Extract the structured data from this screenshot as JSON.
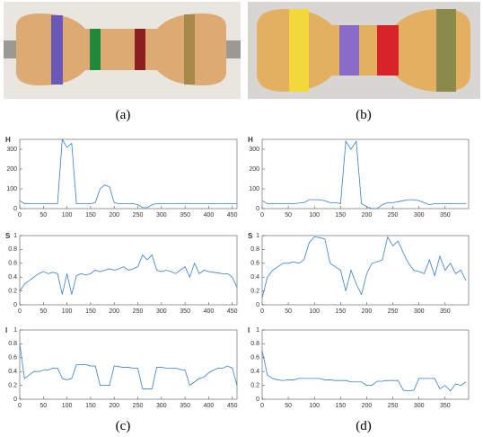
{
  "captions": [
    "(a)",
    "(b)",
    "(c)",
    "(d)"
  ],
  "chart_data": [
    {
      "type": "line",
      "ylabel": "H",
      "color": "#3a7fc4",
      "xlim": [
        0,
        460
      ],
      "ylim": [
        0,
        350
      ],
      "xticks": [
        0,
        50,
        100,
        150,
        200,
        250,
        300,
        350,
        400,
        450
      ],
      "yticks": [
        0,
        100,
        200,
        300
      ],
      "x": [
        0,
        10,
        20,
        30,
        40,
        50,
        60,
        70,
        80,
        90,
        100,
        110,
        120,
        130,
        140,
        150,
        160,
        170,
        180,
        190,
        200,
        210,
        220,
        230,
        240,
        250,
        260,
        270,
        280,
        290,
        300,
        310,
        320,
        330,
        340,
        350,
        360,
        370,
        380,
        390,
        400,
        410,
        420,
        430,
        440,
        450,
        460
      ],
      "values": [
        40,
        25,
        25,
        25,
        25,
        25,
        25,
        25,
        25,
        350,
        310,
        330,
        25,
        25,
        25,
        25,
        30,
        100,
        120,
        110,
        30,
        25,
        25,
        25,
        25,
        20,
        5,
        5,
        20,
        25,
        25,
        25,
        25,
        25,
        25,
        25,
        25,
        25,
        25,
        25,
        25,
        25,
        25,
        25,
        25,
        25,
        25
      ]
    },
    {
      "type": "line",
      "ylabel": "S",
      "color": "#3a7fc4",
      "xlim": [
        0,
        460
      ],
      "ylim": [
        0,
        1
      ],
      "xticks": [
        0,
        50,
        100,
        150,
        200,
        250,
        300,
        350,
        400,
        450
      ],
      "yticks": [
        0,
        0.2,
        0.4,
        0.6,
        0.8,
        1
      ],
      "x": [
        0,
        10,
        20,
        30,
        40,
        50,
        60,
        70,
        80,
        90,
        100,
        110,
        120,
        130,
        140,
        150,
        160,
        170,
        180,
        190,
        200,
        210,
        220,
        230,
        240,
        250,
        260,
        270,
        280,
        290,
        300,
        310,
        320,
        330,
        340,
        350,
        360,
        370,
        380,
        390,
        400,
        410,
        420,
        430,
        440,
        450,
        460
      ],
      "values": [
        0.2,
        0.3,
        0.35,
        0.4,
        0.45,
        0.48,
        0.45,
        0.47,
        0.45,
        0.15,
        0.45,
        0.15,
        0.42,
        0.45,
        0.43,
        0.45,
        0.5,
        0.48,
        0.5,
        0.52,
        0.5,
        0.52,
        0.55,
        0.5,
        0.52,
        0.55,
        0.72,
        0.65,
        0.72,
        0.5,
        0.48,
        0.5,
        0.48,
        0.45,
        0.5,
        0.55,
        0.4,
        0.6,
        0.45,
        0.5,
        0.48,
        0.47,
        0.46,
        0.45,
        0.45,
        0.4,
        0.25
      ]
    },
    {
      "type": "line",
      "ylabel": "I",
      "color": "#3a7fc4",
      "xlim": [
        0,
        460
      ],
      "ylim": [
        0,
        1
      ],
      "xticks": [
        0,
        50,
        100,
        150,
        200,
        250,
        300,
        350,
        400,
        450
      ],
      "yticks": [
        0,
        0.2,
        0.4,
        0.6,
        0.8,
        1
      ],
      "x": [
        0,
        10,
        20,
        30,
        40,
        50,
        60,
        70,
        80,
        90,
        100,
        110,
        120,
        130,
        140,
        150,
        160,
        170,
        180,
        190,
        200,
        210,
        220,
        230,
        240,
        250,
        260,
        270,
        280,
        290,
        300,
        310,
        320,
        330,
        340,
        350,
        360,
        370,
        380,
        390,
        400,
        410,
        420,
        430,
        440,
        450,
        460
      ],
      "values": [
        0.8,
        0.3,
        0.35,
        0.4,
        0.4,
        0.42,
        0.42,
        0.45,
        0.45,
        0.3,
        0.28,
        0.3,
        0.5,
        0.5,
        0.5,
        0.48,
        0.48,
        0.2,
        0.2,
        0.2,
        0.48,
        0.47,
        0.46,
        0.46,
        0.45,
        0.45,
        0.15,
        0.15,
        0.15,
        0.46,
        0.46,
        0.45,
        0.45,
        0.45,
        0.43,
        0.42,
        0.2,
        0.25,
        0.3,
        0.32,
        0.38,
        0.42,
        0.45,
        0.45,
        0.48,
        0.45,
        0.2
      ]
    },
    {
      "type": "line",
      "ylabel": "H",
      "color": "#3a7fc4",
      "xlim": [
        0,
        395
      ],
      "ylim": [
        0,
        350
      ],
      "xticks": [
        0,
        50,
        100,
        150,
        200,
        250,
        300,
        350
      ],
      "yticks": [
        0,
        100,
        200,
        300
      ],
      "x": [
        0,
        10,
        20,
        30,
        40,
        50,
        60,
        70,
        80,
        90,
        100,
        110,
        120,
        130,
        140,
        150,
        160,
        170,
        180,
        190,
        200,
        210,
        220,
        230,
        240,
        250,
        260,
        270,
        280,
        290,
        300,
        310,
        320,
        330,
        340,
        350,
        360,
        370,
        380,
        390
      ],
      "values": [
        40,
        25,
        25,
        25,
        25,
        25,
        25,
        28,
        30,
        45,
        45,
        45,
        40,
        30,
        30,
        25,
        340,
        300,
        340,
        25,
        10,
        0,
        0,
        20,
        30,
        30,
        35,
        40,
        45,
        45,
        40,
        30,
        20,
        25,
        25,
        25,
        25,
        25,
        25,
        25
      ]
    },
    {
      "type": "line",
      "ylabel": "S",
      "color": "#3a7fc4",
      "xlim": [
        0,
        395
      ],
      "ylim": [
        0,
        1
      ],
      "xticks": [
        0,
        50,
        100,
        150,
        200,
        250,
        300,
        350
      ],
      "yticks": [
        0,
        0.2,
        0.4,
        0.6,
        0.8,
        1
      ],
      "x": [
        0,
        10,
        20,
        30,
        40,
        50,
        60,
        70,
        80,
        90,
        100,
        110,
        120,
        130,
        140,
        150,
        160,
        170,
        180,
        190,
        200,
        210,
        220,
        230,
        240,
        250,
        260,
        270,
        280,
        290,
        300,
        310,
        320,
        330,
        340,
        350,
        360,
        370,
        380,
        390
      ],
      "values": [
        0.1,
        0.4,
        0.5,
        0.55,
        0.6,
        0.6,
        0.62,
        0.6,
        0.65,
        0.9,
        0.98,
        0.97,
        0.95,
        0.6,
        0.55,
        0.5,
        0.2,
        0.5,
        0.3,
        0.15,
        0.45,
        0.6,
        0.62,
        0.65,
        0.98,
        0.85,
        0.92,
        0.75,
        0.6,
        0.5,
        0.48,
        0.45,
        0.65,
        0.42,
        0.7,
        0.5,
        0.6,
        0.45,
        0.5,
        0.35
      ]
    },
    {
      "type": "line",
      "ylabel": "I",
      "color": "#3a7fc4",
      "xlim": [
        0,
        395
      ],
      "ylim": [
        0,
        1
      ],
      "xticks": [
        0,
        50,
        100,
        150,
        200,
        250,
        300,
        350
      ],
      "yticks": [
        0,
        0.2,
        0.4,
        0.6,
        0.8,
        1
      ],
      "x": [
        0,
        10,
        20,
        30,
        40,
        50,
        60,
        70,
        80,
        90,
        100,
        110,
        120,
        130,
        140,
        150,
        160,
        170,
        180,
        190,
        200,
        210,
        220,
        230,
        240,
        250,
        260,
        270,
        280,
        290,
        300,
        310,
        320,
        330,
        340,
        350,
        360,
        370,
        380,
        390
      ],
      "values": [
        0.7,
        0.35,
        0.3,
        0.28,
        0.27,
        0.28,
        0.28,
        0.3,
        0.3,
        0.3,
        0.3,
        0.3,
        0.28,
        0.28,
        0.27,
        0.27,
        0.27,
        0.25,
        0.25,
        0.25,
        0.2,
        0.2,
        0.26,
        0.26,
        0.27,
        0.27,
        0.27,
        0.13,
        0.12,
        0.13,
        0.3,
        0.3,
        0.3,
        0.3,
        0.15,
        0.2,
        0.12,
        0.22,
        0.2,
        0.25
      ]
    }
  ]
}
